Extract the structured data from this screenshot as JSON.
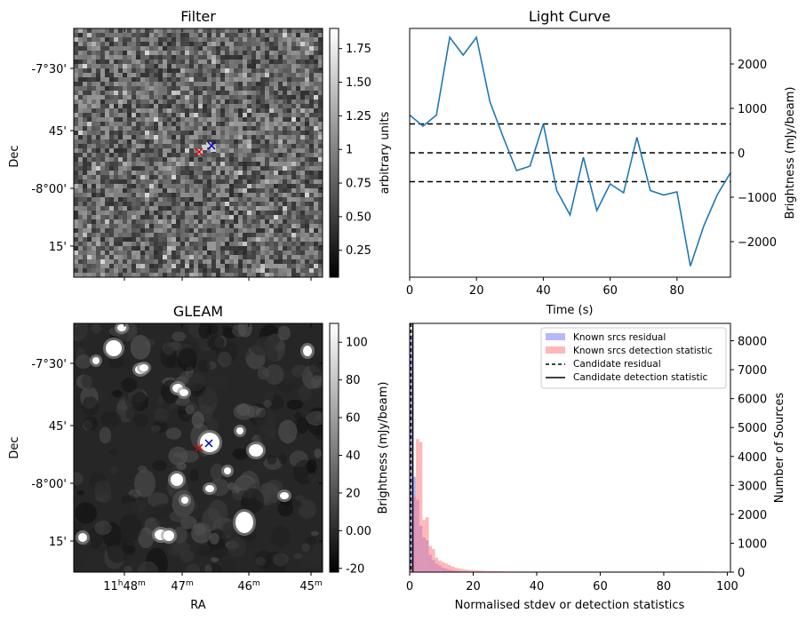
{
  "chart_data": [
    {
      "type": "heatmap",
      "title": "Filter",
      "ylabel": "Dec",
      "xlabel": "",
      "yticks": [
        "-7°30'",
        "45'",
        "-8°00'",
        "15'"
      ],
      "colorbar": {
        "label": "arbitrary units",
        "ticks": [
          0.25,
          0.5,
          0.75,
          1.0,
          1.25,
          1.5,
          1.75
        ],
        "range": [
          0.05,
          1.9
        ]
      },
      "markers": [
        {
          "symbol": "x",
          "color": "#dd0000"
        },
        {
          "symbol": "x",
          "color": "#0000cc"
        }
      ]
    },
    {
      "type": "line",
      "title": "Light Curve",
      "xlabel": "Time (s)",
      "ylabel": "Brightness (mJy/beam)",
      "xlim": [
        0,
        96
      ],
      "ylim": [
        -2800,
        2800
      ],
      "xticks": [
        0,
        20,
        40,
        60,
        80
      ],
      "yticks": [
        -2000,
        -1000,
        0,
        1000,
        2000
      ],
      "series": [
        {
          "x": [
            0,
            4,
            8,
            12,
            16,
            20,
            24,
            28,
            32,
            36,
            40,
            44,
            48,
            52,
            56,
            60,
            64,
            68,
            72,
            76,
            80,
            84,
            88,
            92,
            96
          ],
          "y": [
            850,
            600,
            850,
            2600,
            2200,
            2600,
            1150,
            350,
            -400,
            -300,
            650,
            -850,
            -1400,
            -100,
            -1300,
            -700,
            -900,
            350,
            -850,
            -950,
            -880,
            -2550,
            -1650,
            -950,
            -450
          ]
        }
      ],
      "hlines": [
        650,
        0,
        -650
      ],
      "hline_style": "dashed"
    },
    {
      "type": "heatmap",
      "title": "GLEAM",
      "ylabel": "Dec",
      "xlabel": "RA",
      "yticks": [
        "-7°30'",
        "45'",
        "-8°00'",
        "15'"
      ],
      "xticks": [
        "11h48m",
        "47m",
        "46m",
        "45m"
      ],
      "colorbar": {
        "label": "Brightness (mJy/beam)",
        "ticks": [
          -20,
          0,
          20,
          40,
          60,
          80,
          100
        ],
        "range": [
          -22,
          110
        ]
      },
      "markers": [
        {
          "symbol": "x",
          "color": "#dd0000"
        },
        {
          "symbol": "x",
          "color": "#0000cc"
        }
      ]
    },
    {
      "type": "histogram",
      "xlabel": "Normalised stdev or detection statistics",
      "ylabel": "Number of Sources",
      "xlim": [
        0,
        101
      ],
      "ylim": [
        0,
        8600
      ],
      "xticks": [
        0,
        20,
        40,
        60,
        80,
        100
      ],
      "yticks": [
        0,
        1000,
        2000,
        3000,
        4000,
        5000,
        6000,
        7000,
        8000
      ],
      "series": [
        {
          "name": "Known srcs residual",
          "color": "#7b7bff",
          "bins": [
            0,
            1,
            2,
            3,
            4,
            5,
            6,
            7,
            8,
            9,
            10,
            11,
            12,
            13,
            14,
            15,
            16,
            17,
            18,
            19,
            20
          ],
          "counts": [
            8200,
            3300,
            2500,
            1600,
            1200,
            1100,
            600,
            420,
            300,
            230,
            160,
            120,
            90,
            70,
            50,
            40,
            30,
            25,
            20,
            15
          ]
        },
        {
          "name": "Known srcs detection statistic",
          "color": "#ff7b7b",
          "bins": [
            0,
            1,
            2,
            3,
            4,
            5,
            6,
            7,
            8,
            9,
            10,
            11,
            12,
            13,
            14,
            15,
            16,
            17,
            18,
            19,
            20,
            21,
            22,
            23,
            24,
            25,
            26,
            27,
            28,
            29,
            30
          ],
          "counts": [
            200,
            2600,
            4600,
            4500,
            1800,
            1900,
            900,
            800,
            500,
            400,
            350,
            300,
            250,
            200,
            160,
            130,
            110,
            90,
            80,
            70,
            60,
            55,
            50,
            45,
            40,
            38,
            35,
            32,
            30,
            28
          ]
        }
      ],
      "vlines": [
        {
          "name": "Candidate residual",
          "x": 0.4,
          "style": "dashed"
        },
        {
          "name": "Candidate detection statistic",
          "x": 1.0,
          "style": "solid"
        }
      ],
      "legend": "top-right"
    }
  ]
}
